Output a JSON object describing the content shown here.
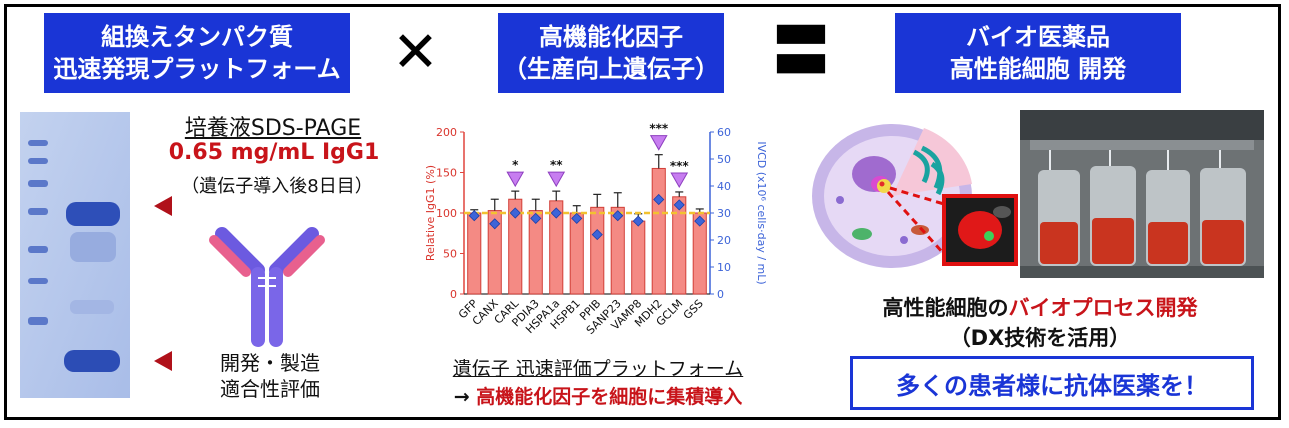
{
  "headers": {
    "platform": [
      "組換えタンパク質",
      "迅速発現プラットフォーム"
    ],
    "factor": [
      "高機能化因子",
      "（生産向上遺伝子）"
    ],
    "biopharma": [
      "バイオ医薬品",
      "高性能細胞 開発"
    ]
  },
  "operators": {
    "times": "✕",
    "equals": "〓"
  },
  "gel": {
    "title": "培養液SDS-PAGE",
    "yield": "0.65 mg/mL IgG1",
    "note": "（遺伝子導入後8日目）"
  },
  "antibody": {
    "caption": [
      "開発・製造",
      "適合性評価"
    ]
  },
  "platform_caption": {
    "line1": "遺伝子 迅速評価プラットフォーム",
    "arrow": "→ ",
    "line2": "高機能化因子を細胞に集積導入"
  },
  "cell_caption": {
    "prefix": "高性能細胞の",
    "highlight": "バイオプロセス開発",
    "line2": "（DX技術を活用）"
  },
  "slogan": "多くの患者様に抗体医薬を！",
  "colors": {
    "header_blue": "#1a35d6",
    "accent_red": "#c8141a",
    "bar_fill": "#f48a84",
    "ivcd_blue": "#3d64d8",
    "arrow_purple": "#c77df0"
  },
  "chart_data": {
    "type": "bar",
    "categories": [
      "GFP",
      "CANX",
      "CARL",
      "PDIA3",
      "HSPA1a",
      "HSPB1",
      "PPIB",
      "SANP23",
      "VAMP8",
      "MDH2",
      "GCLM",
      "GSS"
    ],
    "series": [
      {
        "name": "Relative IgG1 (%)",
        "values": [
          100,
          103,
          117,
          103,
          115,
          100,
          107,
          107,
          90,
          155,
          120,
          100
        ],
        "errors": [
          4,
          14,
          10,
          14,
          12,
          9,
          16,
          18,
          9,
          17,
          6,
          5
        ]
      },
      {
        "name": "IVCD (x10^6 cells·day / mL)",
        "values": [
          29,
          26,
          30,
          28,
          30,
          28,
          22,
          29,
          27,
          35,
          33,
          27
        ]
      }
    ],
    "ylabel_left": "Relative IgG1 (%)",
    "ylabel_right": "IVCD (x10⁶ cells·day / mL)",
    "ylim_left": [
      0,
      200
    ],
    "ylim_right": [
      0,
      60
    ],
    "yticks_left": [
      "0",
      "50",
      "100",
      "150",
      "200"
    ],
    "yticks_right": [
      "0",
      "10",
      "20",
      "30",
      "40",
      "50",
      "60"
    ],
    "reference_line": 100,
    "significance": [
      {
        "category": "CARL",
        "label": "*"
      },
      {
        "category": "HSPA1a",
        "label": "**"
      },
      {
        "category": "MDH2",
        "label": "***"
      },
      {
        "category": "GCLM",
        "label": "***"
      }
    ]
  }
}
